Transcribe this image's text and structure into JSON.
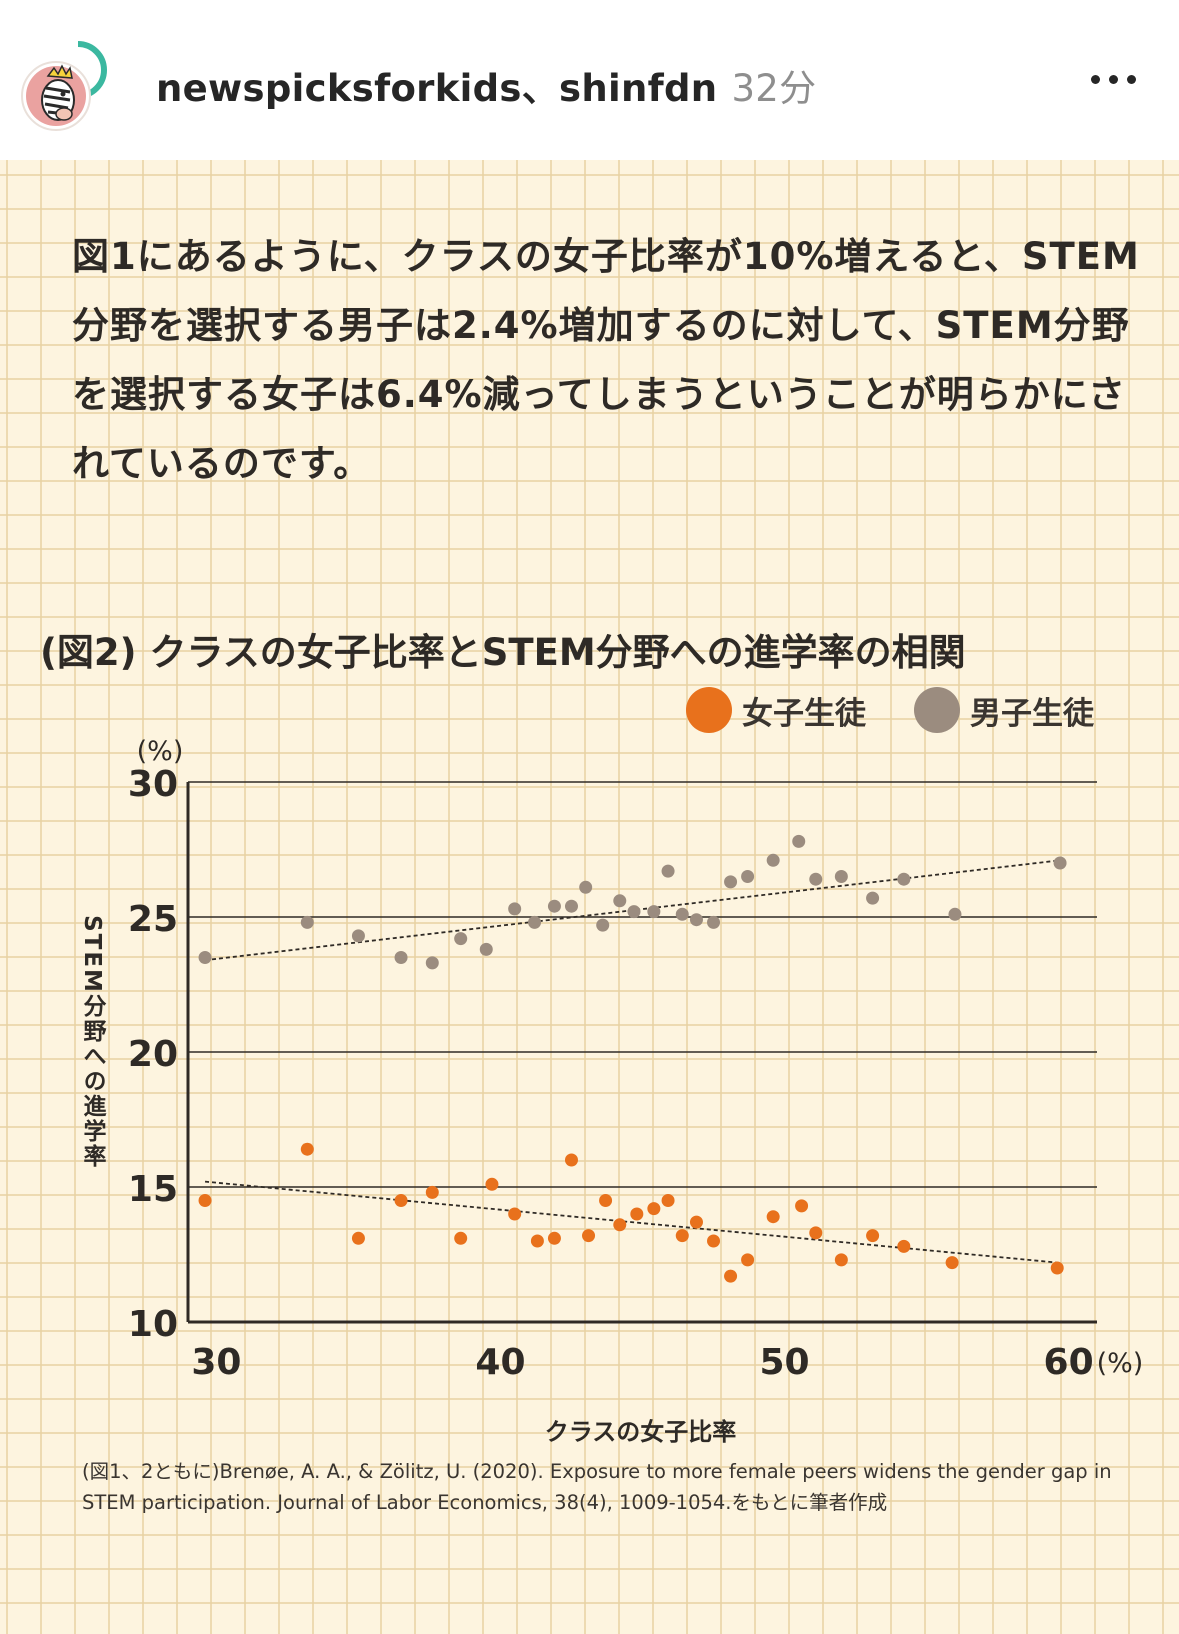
{
  "header": {
    "accounts": "newspicksforkids、shinfdn",
    "time": "32分",
    "avatar_icon": "zebra-avatar-icon",
    "more_icon": "more-options-icon"
  },
  "post": {
    "body_text": "図1にあるように、クラスの女子比率が10%増えると、STEM分野を選択する男子は2.4%増加するのに対して、STEM分野を選択する女子は6.4%減ってしまうということが明らかにされているのです。",
    "source": "(図1、2ともに)Brenøe, A. A., & Zölitz, U. (2020). Exposure to more female peers widens the gender gap in STEM participation. Journal of Labor Economics, 38(4), 1009-1054.をもとに筆者作成"
  },
  "chart_data": {
    "type": "scatter",
    "title": "(図2) クラスの女子比率とSTEM分野への進学率の相関",
    "xlabel": "クラスの女子比率",
    "ylabel": "STEM分野への進学率",
    "x_unit": "(%)",
    "y_unit": "(%)",
    "xlim": [
      29,
      61
    ],
    "ylim": [
      10,
      30
    ],
    "xticks": [
      "30",
      "40",
      "50",
      "60"
    ],
    "yticks": [
      "10",
      "15",
      "20",
      "25",
      "30"
    ],
    "grid": "horizontal",
    "legend_position": "top-right",
    "series": [
      {
        "name": "女子生徒",
        "color": "#e8711c",
        "points": [
          [
            29.6,
            14.5
          ],
          [
            33.2,
            16.4
          ],
          [
            35.0,
            13.1
          ],
          [
            36.5,
            14.5
          ],
          [
            37.6,
            14.8
          ],
          [
            38.6,
            13.1
          ],
          [
            39.7,
            15.1
          ],
          [
            40.5,
            14.0
          ],
          [
            41.3,
            13.0
          ],
          [
            41.9,
            13.1
          ],
          [
            42.5,
            16.0
          ],
          [
            43.1,
            13.2
          ],
          [
            43.7,
            14.5
          ],
          [
            44.2,
            13.6
          ],
          [
            44.8,
            14.0
          ],
          [
            45.4,
            14.2
          ],
          [
            45.9,
            14.5
          ],
          [
            46.4,
            13.2
          ],
          [
            46.9,
            13.7
          ],
          [
            47.5,
            13.0
          ],
          [
            48.1,
            11.7
          ],
          [
            48.7,
            12.3
          ],
          [
            49.6,
            13.9
          ],
          [
            50.6,
            14.3
          ],
          [
            51.1,
            13.3
          ],
          [
            52.0,
            12.3
          ],
          [
            53.1,
            13.2
          ],
          [
            54.2,
            12.8
          ],
          [
            55.9,
            12.2
          ],
          [
            59.6,
            12.0
          ]
        ],
        "trend": [
          [
            29.6,
            15.2
          ],
          [
            59.6,
            12.2
          ]
        ]
      },
      {
        "name": "男子生徒",
        "color": "#9b8c7f",
        "points": [
          [
            29.6,
            23.5
          ],
          [
            33.2,
            24.8
          ],
          [
            35.0,
            24.3
          ],
          [
            36.5,
            23.5
          ],
          [
            37.6,
            23.3
          ],
          [
            38.6,
            24.2
          ],
          [
            39.5,
            23.8
          ],
          [
            40.5,
            25.3
          ],
          [
            41.2,
            24.8
          ],
          [
            41.9,
            25.4
          ],
          [
            42.5,
            25.4
          ],
          [
            43.0,
            26.1
          ],
          [
            43.6,
            24.7
          ],
          [
            44.2,
            25.6
          ],
          [
            44.7,
            25.2
          ],
          [
            45.4,
            25.2
          ],
          [
            45.9,
            26.7
          ],
          [
            46.4,
            25.1
          ],
          [
            46.9,
            24.9
          ],
          [
            47.5,
            24.8
          ],
          [
            48.1,
            26.3
          ],
          [
            48.7,
            26.5
          ],
          [
            49.6,
            27.1
          ],
          [
            50.5,
            27.8
          ],
          [
            51.1,
            26.4
          ],
          [
            52.0,
            26.5
          ],
          [
            53.1,
            25.7
          ],
          [
            54.2,
            26.4
          ],
          [
            56.0,
            25.1
          ],
          [
            59.7,
            27.0
          ]
        ],
        "trend": [
          [
            29.6,
            23.4
          ],
          [
            59.7,
            27.1
          ]
        ]
      }
    ]
  }
}
